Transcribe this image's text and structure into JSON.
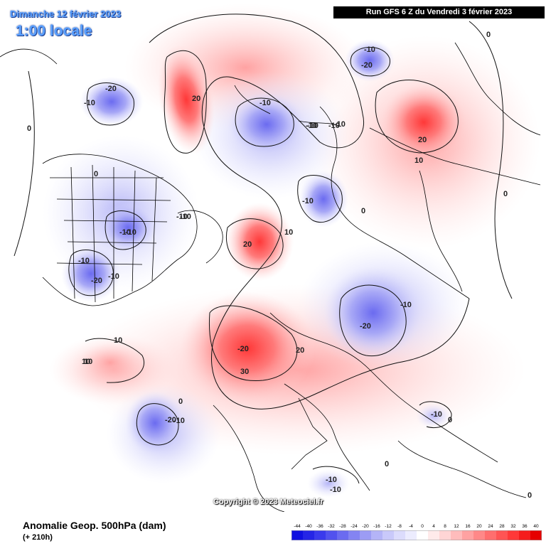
{
  "header": {
    "date": "Dimanche 12 février 2023",
    "time": "1:00 locale",
    "run": "Run GFS 6 Z du Vendredi 3 février 2023"
  },
  "footer": {
    "variable": "Anomalie Geop. 500hPa (dam)",
    "lead": "(+ 210h)",
    "copyright": "Copyright © 2023 Meteociel.fr"
  },
  "legend": {
    "ticks": [
      "-44",
      "-40",
      "-36",
      "-32",
      "-28",
      "-24",
      "-20",
      "-16",
      "-12",
      "-8",
      "-4",
      "0",
      "4",
      "8",
      "12",
      "16",
      "20",
      "24",
      "28",
      "32",
      "36",
      "40"
    ],
    "colors": [
      "#1010e0",
      "#2525e6",
      "#3a3aec",
      "#5252ee",
      "#6b6bf0",
      "#8484f2",
      "#9c9cf4",
      "#b4b4f7",
      "#c9c9fa",
      "#dcdcfc",
      "#ececfe",
      "#ffffff",
      "#ffeaea",
      "#ffd5d5",
      "#ffbcbc",
      "#ffa2a2",
      "#ff8888",
      "#ff6e6e",
      "#ff5454",
      "#ff3838",
      "#f51c1c",
      "#e60000"
    ]
  },
  "anomaly_labels": [
    {
      "text": "-20"
    },
    {
      "text": "-10"
    },
    {
      "text": "0"
    },
    {
      "text": "20"
    },
    {
      "text": "-10"
    },
    {
      "text": "-10"
    },
    {
      "text": "-10"
    },
    {
      "text": "-20"
    },
    {
      "text": "0"
    },
    {
      "text": "-10"
    },
    {
      "text": "-10"
    },
    {
      "text": "-10"
    },
    {
      "text": "-20"
    },
    {
      "text": "20"
    },
    {
      "text": "10"
    },
    {
      "text": "0"
    },
    {
      "text": "10"
    },
    {
      "text": "0"
    },
    {
      "text": "-10"
    },
    {
      "text": "-10"
    },
    {
      "text": "0"
    },
    {
      "text": "-10"
    },
    {
      "text": "-10"
    },
    {
      "text": "-20"
    },
    {
      "text": "-10"
    },
    {
      "text": "20"
    },
    {
      "text": "10"
    },
    {
      "text": "-10"
    },
    {
      "text": "-20"
    },
    {
      "text": "-10"
    },
    {
      "text": "10"
    },
    {
      "text": "10"
    },
    {
      "text": "30"
    },
    {
      "text": "20"
    },
    {
      "text": "-20"
    },
    {
      "text": "0"
    },
    {
      "text": "-10"
    },
    {
      "text": "-10"
    },
    {
      "text": "0"
    },
    {
      "text": "-10"
    },
    {
      "text": "0"
    },
    {
      "text": "-10"
    },
    {
      "text": "-10"
    },
    {
      "text": "0"
    }
  ]
}
